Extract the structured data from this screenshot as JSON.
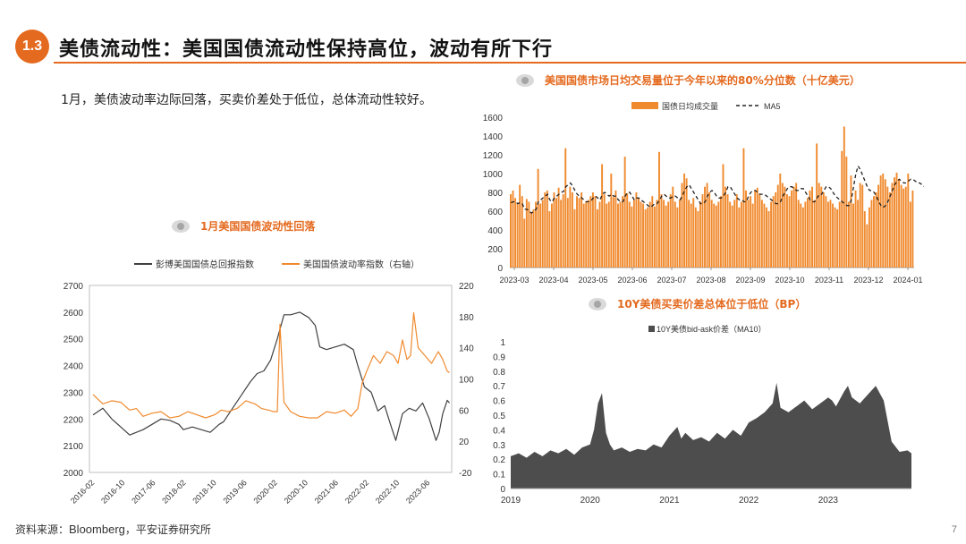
{
  "header": {
    "badge": "1.3",
    "title": "美债流动性：美国国债流动性保持高位，波动有所下行"
  },
  "summary": "1月，美债波动率边际回落，买卖价差处于低位，总体流动性较好。",
  "footer": {
    "source_label": "资料来源：",
    "source_en": "Bloomberg",
    "source_rest": "，平安证券研究所",
    "page": "7"
  },
  "colors": {
    "accent": "#e46a1f",
    "orange": "#f08a2e",
    "line_dark": "#404040",
    "area_dark": "#4d4d4d"
  },
  "chart_data": [
    {
      "id": "volatility",
      "type": "line",
      "title": "1月美国国债波动性回落",
      "x_tick_labels": [
        "2016-02",
        "2016-10",
        "2017-06",
        "2018-02",
        "2018-10",
        "2019-06",
        "2020-02",
        "2020-10",
        "2021-06",
        "2022-02",
        "2022-10",
        "2023-06"
      ],
      "ylim": [
        2000,
        2700
      ],
      "y_ticks": [
        2000,
        2100,
        2200,
        2300,
        2400,
        2500,
        2600,
        2700
      ],
      "y2lim": [
        -20,
        220
      ],
      "y2_ticks": [
        -20,
        20,
        60,
        100,
        140,
        180,
        220
      ],
      "legend_position": "top",
      "series": [
        {
          "name": "彭博美国国债总回报指数",
          "axis": "left",
          "color": "#404040",
          "x": [
            2016.08,
            2016.3,
            2016.5,
            2016.7,
            2016.9,
            2017.05,
            2017.2,
            2017.4,
            2017.6,
            2017.8,
            2018.0,
            2018.1,
            2018.3,
            2018.5,
            2018.7,
            2018.9,
            2019.0,
            2019.2,
            2019.4,
            2019.6,
            2019.75,
            2019.9,
            2020.05,
            2020.2,
            2020.35,
            2020.5,
            2020.7,
            2020.9,
            2021.05,
            2021.15,
            2021.3,
            2021.5,
            2021.7,
            2021.9,
            2022.0,
            2022.15,
            2022.3,
            2022.45,
            2022.6,
            2022.75,
            2022.85,
            2023.0,
            2023.15,
            2023.3,
            2023.45,
            2023.6,
            2023.75,
            2023.82,
            2023.9,
            2024.0,
            2024.05
          ],
          "y": [
            2215,
            2240,
            2200,
            2170,
            2140,
            2150,
            2160,
            2180,
            2200,
            2195,
            2180,
            2160,
            2170,
            2160,
            2150,
            2180,
            2190,
            2240,
            2290,
            2340,
            2370,
            2380,
            2420,
            2500,
            2590,
            2590,
            2600,
            2580,
            2550,
            2470,
            2460,
            2470,
            2480,
            2460,
            2400,
            2320,
            2300,
            2230,
            2250,
            2170,
            2120,
            2220,
            2240,
            2230,
            2260,
            2200,
            2120,
            2150,
            2220,
            2270,
            2260
          ]
        },
        {
          "name": "美国国债波动率指数（右轴）",
          "axis": "right",
          "color": "#f08a2e",
          "x": [
            2016.08,
            2016.3,
            2016.5,
            2016.7,
            2016.9,
            2017.05,
            2017.2,
            2017.4,
            2017.6,
            2017.8,
            2018.0,
            2018.2,
            2018.4,
            2018.6,
            2018.8,
            2018.95,
            2019.1,
            2019.3,
            2019.5,
            2019.7,
            2019.85,
            2020.0,
            2020.12,
            2020.2,
            2020.26,
            2020.35,
            2020.5,
            2020.7,
            2020.9,
            2021.1,
            2021.2,
            2021.3,
            2021.5,
            2021.7,
            2021.85,
            2022.0,
            2022.1,
            2022.2,
            2022.35,
            2022.5,
            2022.65,
            2022.8,
            2022.9,
            2023.0,
            2023.1,
            2023.18,
            2023.25,
            2023.35,
            2023.5,
            2023.65,
            2023.8,
            2023.9,
            2024.0,
            2024.05
          ],
          "y": [
            80,
            68,
            72,
            70,
            60,
            62,
            52,
            56,
            58,
            50,
            52,
            58,
            54,
            50,
            54,
            60,
            58,
            62,
            72,
            68,
            62,
            60,
            58,
            58,
            170,
            70,
            58,
            52,
            50,
            50,
            54,
            58,
            56,
            60,
            52,
            62,
            95,
            110,
            130,
            120,
            135,
            130,
            120,
            150,
            125,
            130,
            185,
            140,
            130,
            120,
            135,
            125,
            110,
            108
          ]
        }
      ]
    },
    {
      "id": "volume",
      "type": "bar",
      "title": "美国国债市场日均交易量位于今年以来的80%分位数（十亿美元）",
      "x_tick_labels": [
        "2023-03",
        "2023-04",
        "2023-05",
        "2023-06",
        "2023-07",
        "2023-08",
        "2023-09",
        "2023-10",
        "2023-11",
        "2023-12",
        "2024-01"
      ],
      "ylim": [
        0,
        1600
      ],
      "y_ticks": [
        0,
        200,
        400,
        600,
        800,
        1000,
        1200,
        1400,
        1600
      ],
      "legend_position": "top",
      "series": [
        {
          "name": "国债日均成交量",
          "color": "#f08a2e",
          "values": [
            780,
            820,
            740,
            690,
            880,
            760,
            520,
            730,
            700,
            580,
            620,
            700,
            1050,
            680,
            720,
            800,
            820,
            600,
            680,
            800,
            740,
            850,
            720,
            780,
            1270,
            740,
            860,
            800,
            620,
            760,
            740,
            800,
            680,
            700,
            720,
            760,
            800,
            760,
            620,
            700,
            1100,
            780,
            680,
            700,
            1000,
            750,
            820,
            680,
            700,
            760,
            1180,
            790,
            700,
            650,
            720,
            800,
            740,
            700,
            680,
            620,
            640,
            700,
            760,
            650,
            720,
            1230,
            780,
            720,
            660,
            700,
            780,
            860,
            700,
            640,
            720,
            900,
            1000,
            950,
            720,
            680,
            740,
            640,
            600,
            700,
            780,
            860,
            900,
            800,
            720,
            680,
            660,
            700,
            760,
            1100,
            860,
            780,
            700,
            660,
            720,
            780,
            640,
            700,
            1270,
            820,
            720,
            760,
            680,
            820,
            850,
            780,
            720,
            680,
            640,
            600,
            700,
            760,
            800,
            880,
            1000,
            900,
            860,
            780,
            760,
            820,
            860,
            900,
            720,
            680,
            640,
            700,
            740,
            820,
            860,
            720,
            1320,
            900,
            860,
            800,
            760,
            700,
            720,
            680,
            640,
            620,
            700,
            1240,
            1500,
            1180,
            700,
            980,
            680,
            820,
            720,
            900,
            880,
            600,
            460,
            640,
            720,
            760,
            800,
            880,
            980,
            1000,
            940,
            860,
            800,
            900,
            960,
            1010,
            940,
            880,
            840,
            860,
            1000,
            700,
            820
          ]
        },
        {
          "name": "MA5",
          "color": "#222222",
          "values": [
            690,
            700,
            700,
            680,
            690,
            680,
            620,
            620,
            600,
            580,
            600,
            620,
            700,
            720,
            740,
            760,
            780,
            720,
            700,
            740,
            760,
            780,
            800,
            810,
            860,
            880,
            900,
            870,
            820,
            780,
            760,
            740,
            720,
            700,
            700,
            710,
            740,
            760,
            740,
            720,
            780,
            800,
            780,
            760,
            780,
            760,
            760,
            720,
            700,
            700,
            760,
            800,
            800,
            760,
            720,
            740,
            740,
            720,
            700,
            680,
            660,
            640,
            660,
            680,
            680,
            720,
            760,
            780,
            760,
            740,
            740,
            760,
            760,
            740,
            720,
            760,
            820,
            860,
            880,
            840,
            800,
            760,
            720,
            680,
            680,
            700,
            760,
            800,
            820,
            800,
            760,
            740,
            740,
            760,
            800,
            860,
            860,
            820,
            780,
            740,
            720,
            720,
            700,
            700,
            760,
            800,
            820,
            820,
            800,
            780,
            780,
            780,
            760,
            740,
            720,
            700,
            680,
            680,
            700,
            760,
            800,
            840,
            860,
            860,
            840,
            820,
            820,
            840,
            840,
            800,
            760,
            720,
            700,
            700,
            740,
            780,
            780,
            820,
            860,
            860,
            840,
            800,
            760,
            740,
            720,
            700,
            680,
            660,
            660,
            720,
            860,
            1000,
            1080,
            1040,
            980,
            920,
            860,
            820,
            820,
            800,
            760,
            700,
            660,
            640,
            660,
            700,
            760,
            820,
            880,
            920,
            940,
            920,
            900,
            900,
            920,
            940,
            940,
            920,
            900,
            900,
            880,
            860,
            860
          ]
        }
      ]
    },
    {
      "id": "bidask",
      "type": "area",
      "title": "10Y美债买卖价差总体位于低位（BP）",
      "x_tick_labels": [
        "2019",
        "2020",
        "2021",
        "2022",
        "2023"
      ],
      "ylim": [
        0,
        1
      ],
      "y_ticks": [
        0,
        0.1,
        0.2,
        0.3,
        0.4,
        0.5,
        0.6,
        0.7,
        0.8,
        0.9,
        1
      ],
      "legend_position": "top",
      "series": [
        {
          "name": "10Y美债bid-ask价差（MA10）",
          "color": "#4d4d4d",
          "x": [
            2019.0,
            2019.1,
            2019.2,
            2019.3,
            2019.4,
            2019.5,
            2019.6,
            2019.7,
            2019.8,
            2019.9,
            2020.0,
            2020.05,
            2020.1,
            2020.15,
            2020.2,
            2020.25,
            2020.3,
            2020.4,
            2020.5,
            2020.6,
            2020.7,
            2020.8,
            2020.9,
            2021.0,
            2021.1,
            2021.15,
            2021.2,
            2021.3,
            2021.4,
            2021.5,
            2021.6,
            2021.7,
            2021.8,
            2021.9,
            2022.0,
            2022.1,
            2022.2,
            2022.3,
            2022.35,
            2022.4,
            2022.5,
            2022.6,
            2022.7,
            2022.8,
            2022.9,
            2023.0,
            2023.05,
            2023.1,
            2023.2,
            2023.25,
            2023.3,
            2023.4,
            2023.5,
            2023.6,
            2023.7,
            2023.8,
            2023.9,
            2024.0,
            2024.05
          ],
          "y": [
            0.22,
            0.24,
            0.21,
            0.25,
            0.22,
            0.26,
            0.24,
            0.27,
            0.23,
            0.28,
            0.3,
            0.4,
            0.58,
            0.65,
            0.38,
            0.3,
            0.26,
            0.28,
            0.25,
            0.27,
            0.26,
            0.3,
            0.28,
            0.36,
            0.42,
            0.34,
            0.38,
            0.33,
            0.35,
            0.32,
            0.38,
            0.34,
            0.4,
            0.36,
            0.45,
            0.48,
            0.52,
            0.58,
            0.72,
            0.55,
            0.52,
            0.56,
            0.6,
            0.54,
            0.58,
            0.62,
            0.6,
            0.56,
            0.66,
            0.7,
            0.62,
            0.58,
            0.64,
            0.7,
            0.6,
            0.32,
            0.25,
            0.26,
            0.24
          ]
        }
      ]
    }
  ]
}
